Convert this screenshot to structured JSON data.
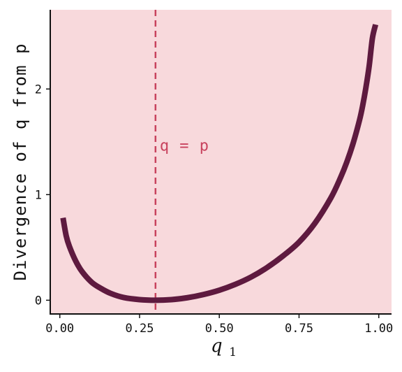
{
  "chart_data": {
    "type": "line",
    "title": "",
    "xlabel": "q",
    "xlabel_subscript": "1",
    "ylabel": "Divergence of q from p",
    "xlim": [
      -0.03,
      1.04
    ],
    "ylim": [
      -0.13,
      2.75
    ],
    "xticks": [
      0.0,
      0.25,
      0.5,
      0.75,
      1.0
    ],
    "xtick_labels": [
      "0.00",
      "0.25",
      "0.50",
      "0.75",
      "1.00"
    ],
    "yticks": [
      0,
      1,
      2
    ],
    "ytick_labels": [
      "0",
      "1",
      "2"
    ],
    "grid": false,
    "legend": "none",
    "annotation": {
      "text": "q = p",
      "x": 0.3,
      "y": 1.47
    },
    "reference_line": {
      "x": 0.3,
      "style": "dashed"
    },
    "series": [
      {
        "x": [
          0.01,
          0.02,
          0.03,
          0.05,
          0.07,
          0.1,
          0.13,
          0.16,
          0.2,
          0.25,
          0.3,
          0.35,
          0.4,
          0.45,
          0.5,
          0.55,
          0.6,
          0.65,
          0.7,
          0.75,
          0.8,
          0.85,
          0.88,
          0.9,
          0.92,
          0.94,
          0.95,
          0.96,
          0.97,
          0.98,
          0.99
        ],
        "y": [
          0.78,
          0.61,
          0.51,
          0.37,
          0.27,
          0.17,
          0.11,
          0.064,
          0.026,
          0.006,
          0.0,
          0.006,
          0.024,
          0.054,
          0.095,
          0.15,
          0.22,
          0.31,
          0.42,
          0.55,
          0.73,
          0.97,
          1.16,
          1.31,
          1.49,
          1.71,
          1.85,
          2.02,
          2.22,
          2.48,
          2.61
        ]
      }
    ]
  },
  "colors": {
    "plot_background": "#f8d9dc",
    "curve": "#5e1a3f",
    "reference_line": "#c8435e",
    "annotation": "#c8435e",
    "axis": "#111111"
  }
}
